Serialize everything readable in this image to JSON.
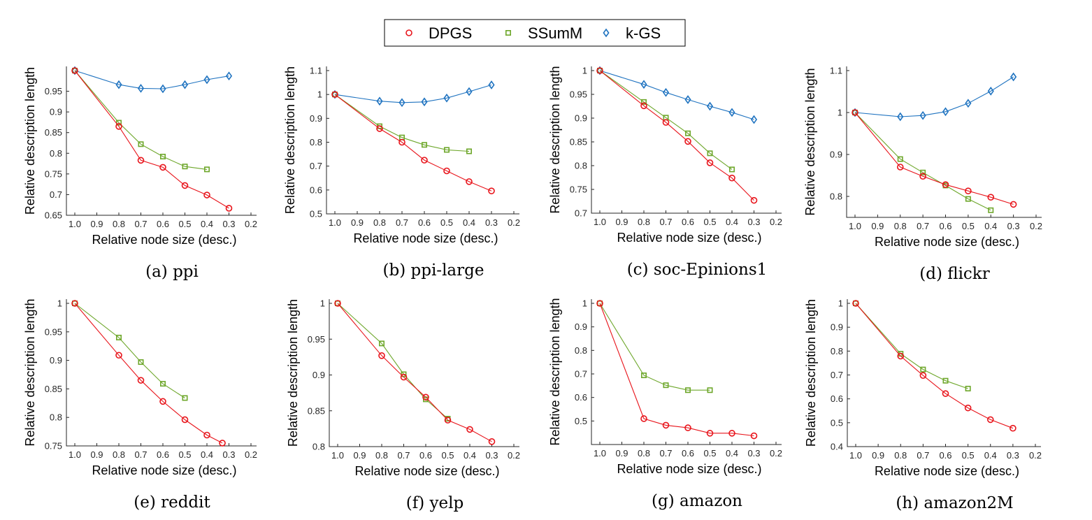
{
  "legend": {
    "entries": [
      {
        "label": "DPGS",
        "color": "#e8141b",
        "marker": "circle"
      },
      {
        "label": "SSumM",
        "color": "#6ea72b",
        "marker": "square"
      },
      {
        "label": "k-GS",
        "color": "#1f73c0",
        "marker": "diamond"
      }
    ]
  },
  "chart_data": [
    {
      "type": "line",
      "caption": "(a) ppi",
      "xlabel": "Relative node size (desc.)",
      "ylabel": "Relative description length",
      "xlim": [
        1.0,
        0.2
      ],
      "ylim": [
        0.65,
        1.0
      ],
      "xticks": [
        "1.0",
        "0.9",
        "0.8",
        "0.7",
        "0.6",
        "0.5",
        "0.4",
        "0.3",
        "0.2"
      ],
      "yticks": [
        0.65,
        0.7,
        0.75,
        0.8,
        0.85,
        0.9,
        0.95
      ],
      "ytick_labels": [
        "0.65",
        "0.7",
        "0.75",
        "0.8",
        "0.85",
        "0.9",
        "0.95"
      ],
      "series": [
        {
          "name": "DPGS",
          "x": [
            1.0,
            0.8,
            0.7,
            0.6,
            0.5,
            0.4,
            0.3
          ],
          "y": [
            1.0,
            0.865,
            0.783,
            0.766,
            0.722,
            0.699,
            0.667
          ]
        },
        {
          "name": "SSumM",
          "x": [
            1.0,
            0.8,
            0.7,
            0.6,
            0.5,
            0.4
          ],
          "y": [
            1.0,
            0.874,
            0.822,
            0.792,
            0.768,
            0.761
          ]
        },
        {
          "name": "k-GS",
          "x": [
            1.0,
            0.8,
            0.7,
            0.6,
            0.5,
            0.4,
            0.3
          ],
          "y": [
            1.0,
            0.966,
            0.957,
            0.956,
            0.966,
            0.978,
            0.987
          ]
        }
      ]
    },
    {
      "type": "line",
      "caption": "(b) ppi-large",
      "xlabel": "Relative node size (desc.)",
      "ylabel": "Relative description length",
      "xlim": [
        1.0,
        0.2
      ],
      "ylim": [
        0.5,
        1.1
      ],
      "xticks": [
        "1.0",
        "0.9",
        "0.8",
        "0.7",
        "0.6",
        "0.5",
        "0.4",
        "0.3",
        "0.2"
      ],
      "yticks": [
        0.5,
        0.6,
        0.7,
        0.8,
        0.9,
        1.0,
        1.1
      ],
      "ytick_labels": [
        "0.5",
        "0.6",
        "0.7",
        "0.8",
        "0.9",
        "1",
        "1.1"
      ],
      "series": [
        {
          "name": "DPGS",
          "x": [
            1.0,
            0.8,
            0.7,
            0.6,
            0.5,
            0.4,
            0.3
          ],
          "y": [
            1.0,
            0.857,
            0.8,
            0.725,
            0.68,
            0.635,
            0.596
          ]
        },
        {
          "name": "SSumM",
          "x": [
            1.0,
            0.8,
            0.7,
            0.6,
            0.5,
            0.4
          ],
          "y": [
            1.0,
            0.867,
            0.82,
            0.789,
            0.768,
            0.762
          ]
        },
        {
          "name": "k-GS",
          "x": [
            1.0,
            0.8,
            0.7,
            0.6,
            0.5,
            0.4,
            0.3
          ],
          "y": [
            1.0,
            0.972,
            0.966,
            0.969,
            0.985,
            1.012,
            1.04
          ]
        }
      ]
    },
    {
      "type": "line",
      "caption": "(c) soc-Epinions1",
      "xlabel": "Relative node size (desc.)",
      "ylabel": "Relative description length",
      "xlim": [
        1.0,
        0.2
      ],
      "ylim": [
        0.7,
        1.0
      ],
      "xticks": [
        "1.0",
        "0.9",
        "0.8",
        "0.7",
        "0.6",
        "0.5",
        "0.4",
        "0.3",
        "0.2"
      ],
      "yticks": [
        0.7,
        0.75,
        0.8,
        0.85,
        0.9,
        0.95,
        1.0
      ],
      "ytick_labels": [
        "0.7",
        "0.75",
        "0.8",
        "0.85",
        "0.9",
        "0.95",
        "1"
      ],
      "series": [
        {
          "name": "DPGS",
          "x": [
            1.0,
            0.8,
            0.7,
            0.6,
            0.5,
            0.4,
            0.3
          ],
          "y": [
            1.0,
            0.926,
            0.891,
            0.851,
            0.806,
            0.774,
            0.727
          ]
        },
        {
          "name": "SSumM",
          "x": [
            1.0,
            0.8,
            0.7,
            0.6,
            0.5,
            0.4
          ],
          "y": [
            1.0,
            0.934,
            0.901,
            0.868,
            0.826,
            0.792
          ]
        },
        {
          "name": "k-GS",
          "x": [
            1.0,
            0.8,
            0.7,
            0.6,
            0.5,
            0.4,
            0.3
          ],
          "y": [
            1.0,
            0.971,
            0.954,
            0.939,
            0.925,
            0.912,
            0.897
          ]
        }
      ]
    },
    {
      "type": "line",
      "caption": "(d) flickr",
      "xlabel": "Relative node size (desc.)",
      "ylabel": "Relative description length",
      "xlim": [
        1.0,
        0.2
      ],
      "ylim": [
        0.75,
        1.1
      ],
      "xticks": [
        "1.0",
        "0.9",
        "0.8",
        "0.7",
        "0.6",
        "0.5",
        "0.4",
        "0.3",
        "0.2"
      ],
      "yticks": [
        0.8,
        0.9,
        1.0,
        1.1
      ],
      "ytick_labels": [
        "0.8",
        "0.9",
        "1",
        "1.1"
      ],
      "series": [
        {
          "name": "DPGS",
          "x": [
            1.0,
            0.8,
            0.7,
            0.6,
            0.5,
            0.4,
            0.3
          ],
          "y": [
            1.0,
            0.87,
            0.848,
            0.828,
            0.813,
            0.798,
            0.781
          ]
        },
        {
          "name": "SSumM",
          "x": [
            1.0,
            0.8,
            0.7,
            0.6,
            0.5,
            0.4
          ],
          "y": [
            1.0,
            0.889,
            0.857,
            0.826,
            0.794,
            0.767
          ]
        },
        {
          "name": "k-GS",
          "x": [
            1.0,
            0.8,
            0.7,
            0.6,
            0.5,
            0.4,
            0.3
          ],
          "y": [
            1.0,
            0.99,
            0.993,
            1.002,
            1.022,
            1.051,
            1.085
          ]
        }
      ]
    },
    {
      "type": "line",
      "caption": "(e) reddit",
      "xlabel": "Relative node size (desc.)",
      "ylabel": "Relative description length",
      "xlim": [
        1.0,
        0.2
      ],
      "ylim": [
        0.75,
        1.0
      ],
      "xticks": [
        "1.0",
        "0.9",
        "0.8",
        "0.7",
        "0.6",
        "0.5",
        "0.4",
        "0.3",
        "0.2"
      ],
      "yticks": [
        0.75,
        0.8,
        0.85,
        0.9,
        0.95,
        1.0
      ],
      "ytick_labels": [
        "0.75",
        "0.8",
        "0.85",
        "0.9",
        "0.95",
        "1"
      ],
      "series": [
        {
          "name": "DPGS",
          "x": [
            1.0,
            0.8,
            0.7,
            0.6,
            0.5,
            0.4,
            0.33
          ],
          "y": [
            1.0,
            0.909,
            0.865,
            0.828,
            0.796,
            0.769,
            0.755
          ]
        },
        {
          "name": "SSumM",
          "x": [
            1.0,
            0.8,
            0.7,
            0.6,
            0.5
          ],
          "y": [
            1.0,
            0.94,
            0.897,
            0.859,
            0.834
          ]
        }
      ]
    },
    {
      "type": "line",
      "caption": "(f) yelp",
      "xlabel": "Relative node size (desc.)",
      "ylabel": "Relative description length",
      "xlim": [
        1.0,
        0.2
      ],
      "ylim": [
        0.8,
        1.0
      ],
      "xticks": [
        "1.0",
        "0.9",
        "0.8",
        "0.7",
        "0.6",
        "0.5",
        "0.4",
        "0.3",
        "0.2"
      ],
      "yticks": [
        0.8,
        0.85,
        0.9,
        0.95,
        1.0
      ],
      "ytick_labels": [
        "0.8",
        "0.85",
        "0.9",
        "0.95",
        "1"
      ],
      "series": [
        {
          "name": "DPGS",
          "x": [
            1.0,
            0.8,
            0.7,
            0.6,
            0.5,
            0.4,
            0.3
          ],
          "y": [
            1.0,
            0.927,
            0.897,
            0.869,
            0.837,
            0.824,
            0.807
          ]
        },
        {
          "name": "SSumM",
          "x": [
            1.0,
            0.8,
            0.7,
            0.6,
            0.5
          ],
          "y": [
            1.0,
            0.944,
            0.901,
            0.866,
            0.839
          ]
        }
      ]
    },
    {
      "type": "line",
      "caption": "(g) amazon",
      "xlabel": "Relative node size (desc.)",
      "ylabel": "Relative description length",
      "xlim": [
        1.0,
        0.2
      ],
      "ylim": [
        0.4,
        1.0
      ],
      "xticks": [
        "1.0",
        "0.9",
        "0.8",
        "0.7",
        "0.6",
        "0.5",
        "0.4",
        "0.3",
        "0.2"
      ],
      "yticks": [
        0.5,
        0.6,
        0.7,
        0.8,
        0.9,
        1.0
      ],
      "ytick_labels": [
        "0.5",
        "0.6",
        "0.7",
        "0.8",
        "0.9",
        "1"
      ],
      "series": [
        {
          "name": "DPGS",
          "x": [
            1.0,
            0.8,
            0.7,
            0.6,
            0.5,
            0.4,
            0.3
          ],
          "y": [
            1.0,
            0.51,
            0.482,
            0.471,
            0.448,
            0.448,
            0.437
          ]
        },
        {
          "name": "SSumM",
          "x": [
            1.0,
            0.8,
            0.7,
            0.6,
            0.5
          ],
          "y": [
            1.0,
            0.694,
            0.652,
            0.631,
            0.631
          ]
        }
      ]
    },
    {
      "type": "line",
      "caption": "(h) amazon2M",
      "xlabel": "Relative node size (desc.)",
      "ylabel": "Relative description length",
      "xlim": [
        1.0,
        0.2
      ],
      "ylim": [
        0.4,
        1.0
      ],
      "xticks": [
        "1.0",
        "0.9",
        "0.8",
        "0.7",
        "0.6",
        "0.5",
        "0.4",
        "0.3",
        "0.2"
      ],
      "yticks": [
        0.4,
        0.5,
        0.6,
        0.7,
        0.8,
        0.9,
        1.0
      ],
      "ytick_labels": [
        "0.4",
        "0.5",
        "0.6",
        "0.7",
        "0.8",
        "0.9",
        "1"
      ],
      "series": [
        {
          "name": "DPGS",
          "x": [
            1.0,
            0.8,
            0.7,
            0.6,
            0.5,
            0.4,
            0.3
          ],
          "y": [
            1.0,
            0.779,
            0.698,
            0.622,
            0.562,
            0.513,
            0.477
          ]
        },
        {
          "name": "SSumM",
          "x": [
            1.0,
            0.8,
            0.7,
            0.6,
            0.5
          ],
          "y": [
            1.0,
            0.789,
            0.723,
            0.676,
            0.643
          ]
        }
      ]
    }
  ]
}
